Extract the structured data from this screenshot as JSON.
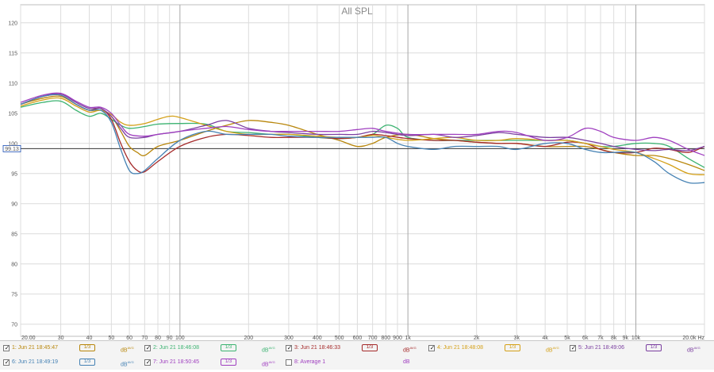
{
  "chart_data": {
    "type": "line",
    "title": "All SPL",
    "xscale": "log",
    "xlim": [
      20,
      20000
    ],
    "ylim": [
      68,
      123
    ],
    "x_ticks": [
      20,
      30,
      40,
      50,
      60,
      70,
      80,
      90,
      100,
      200,
      300,
      400,
      500,
      600,
      700,
      800,
      900,
      1000,
      2000,
      3000,
      4000,
      5000,
      6000,
      7000,
      8000,
      9000,
      10000,
      20000
    ],
    "x_tick_labels": [
      "20.00",
      "30",
      "40",
      "50",
      "60",
      "70",
      "80",
      "90",
      "100",
      "200",
      "300",
      "400",
      "500",
      "600",
      "700",
      "800",
      "900",
      "1k",
      "2k",
      "3k",
      "4k",
      "5k",
      "6k",
      "7k",
      "8k",
      "9k",
      "10k",
      "20.0k Hz"
    ],
    "y_ticks": [
      70,
      75,
      80,
      85,
      90,
      95,
      100,
      105,
      110,
      115,
      120
    ],
    "y_tick_labels": [
      "70",
      "75",
      "80",
      "85",
      "90",
      "95",
      "100",
      "105",
      "110",
      "115",
      "120"
    ],
    "reference_line": {
      "value": 99.13,
      "label": "99.13"
    },
    "grid": true,
    "series": [
      {
        "name": "1: Jun 21 18:45:47",
        "color": "#b8860b",
        "points": [
          [
            20,
            106.5
          ],
          [
            25,
            107.5
          ],
          [
            30,
            107.8
          ],
          [
            35,
            106.5
          ],
          [
            40,
            105.5
          ],
          [
            45,
            105.5
          ],
          [
            50,
            104.5
          ],
          [
            55,
            102
          ],
          [
            60,
            99.5
          ],
          [
            65,
            98.5
          ],
          [
            70,
            98
          ],
          [
            80,
            99.5
          ],
          [
            100,
            100.5
          ],
          [
            130,
            102
          ],
          [
            160,
            103
          ],
          [
            200,
            103.8
          ],
          [
            250,
            103.5
          ],
          [
            300,
            103
          ],
          [
            400,
            101.5
          ],
          [
            500,
            100.5
          ],
          [
            600,
            99.5
          ],
          [
            700,
            100
          ],
          [
            800,
            101
          ],
          [
            1000,
            101.5
          ],
          [
            1300,
            100.8
          ],
          [
            1600,
            100.5
          ],
          [
            2000,
            100.2
          ],
          [
            2500,
            100
          ],
          [
            3000,
            100
          ],
          [
            4000,
            99.5
          ],
          [
            5000,
            99.5
          ],
          [
            6000,
            99.5
          ],
          [
            7000,
            99
          ],
          [
            8000,
            98.5
          ],
          [
            10000,
            98
          ],
          [
            12000,
            98
          ],
          [
            14000,
            97.5
          ],
          [
            17000,
            96.5
          ],
          [
            20000,
            95.5
          ]
        ]
      },
      {
        "name": "2: Jun 21 18:46:08",
        "color": "#3cb371",
        "points": [
          [
            20,
            106
          ],
          [
            25,
            106.8
          ],
          [
            30,
            107
          ],
          [
            35,
            105.5
          ],
          [
            40,
            104.5
          ],
          [
            45,
            105
          ],
          [
            50,
            104
          ],
          [
            55,
            103
          ],
          [
            60,
            102.5
          ],
          [
            70,
            102.8
          ],
          [
            80,
            103.2
          ],
          [
            100,
            103.3
          ],
          [
            130,
            103.2
          ],
          [
            160,
            102
          ],
          [
            200,
            101.8
          ],
          [
            250,
            101.5
          ],
          [
            300,
            101.5
          ],
          [
            400,
            101
          ],
          [
            500,
            100.8
          ],
          [
            600,
            101
          ],
          [
            700,
            101.5
          ],
          [
            800,
            103
          ],
          [
            900,
            102.5
          ],
          [
            1000,
            101
          ],
          [
            1300,
            100.5
          ],
          [
            1600,
            100.5
          ],
          [
            2000,
            100.5
          ],
          [
            2500,
            100.5
          ],
          [
            3000,
            100.5
          ],
          [
            4000,
            100.5
          ],
          [
            5000,
            100.5
          ],
          [
            6000,
            100
          ],
          [
            7000,
            99.5
          ],
          [
            8000,
            99.5
          ],
          [
            10000,
            100
          ],
          [
            12000,
            100
          ],
          [
            14000,
            99.5
          ],
          [
            17000,
            97.5
          ],
          [
            20000,
            96
          ]
        ]
      },
      {
        "name": "3: Jun 21 18:46:33",
        "color": "#a52a2a",
        "points": [
          [
            20,
            106.5
          ],
          [
            25,
            107.8
          ],
          [
            30,
            108
          ],
          [
            35,
            106.5
          ],
          [
            40,
            105.5
          ],
          [
            45,
            105.8
          ],
          [
            50,
            104
          ],
          [
            55,
            100
          ],
          [
            60,
            97
          ],
          [
            65,
            95.5
          ],
          [
            70,
            95.3
          ],
          [
            80,
            97
          ],
          [
            100,
            99.5
          ],
          [
            130,
            101
          ],
          [
            160,
            101.5
          ],
          [
            200,
            101.3
          ],
          [
            250,
            101
          ],
          [
            300,
            101
          ],
          [
            400,
            101
          ],
          [
            500,
            100.8
          ],
          [
            600,
            101
          ],
          [
            700,
            101.5
          ],
          [
            800,
            101.3
          ],
          [
            1000,
            100.8
          ],
          [
            1300,
            100.5
          ],
          [
            1600,
            100.5
          ],
          [
            2000,
            100.2
          ],
          [
            2500,
            100
          ],
          [
            3000,
            100
          ],
          [
            4000,
            99.5
          ],
          [
            5000,
            100.2
          ],
          [
            6000,
            100
          ],
          [
            7000,
            99
          ],
          [
            8000,
            98.5
          ],
          [
            10000,
            98.5
          ],
          [
            12000,
            99.2
          ],
          [
            14000,
            99
          ],
          [
            17000,
            98.5
          ],
          [
            20000,
            99.5
          ]
        ]
      },
      {
        "name": "4: Jun 21 18:48:08",
        "color": "#d4a017",
        "points": [
          [
            20,
            106.2
          ],
          [
            25,
            107.2
          ],
          [
            30,
            107.5
          ],
          [
            35,
            106.2
          ],
          [
            40,
            105.2
          ],
          [
            45,
            105.5
          ],
          [
            50,
            104.8
          ],
          [
            55,
            103.5
          ],
          [
            60,
            103
          ],
          [
            70,
            103.3
          ],
          [
            80,
            104
          ],
          [
            90,
            104.5
          ],
          [
            100,
            104.3
          ],
          [
            130,
            103
          ],
          [
            160,
            102
          ],
          [
            200,
            101.5
          ],
          [
            250,
            101.5
          ],
          [
            300,
            101.5
          ],
          [
            400,
            101.2
          ],
          [
            500,
            101
          ],
          [
            600,
            101
          ],
          [
            700,
            101.3
          ],
          [
            800,
            101
          ],
          [
            1000,
            100.5
          ],
          [
            1300,
            100.8
          ],
          [
            1600,
            101
          ],
          [
            2000,
            100.5
          ],
          [
            2500,
            100.5
          ],
          [
            3000,
            100.8
          ],
          [
            4000,
            100.5
          ],
          [
            5000,
            100.5
          ],
          [
            6000,
            100
          ],
          [
            7000,
            99.5
          ],
          [
            8000,
            99
          ],
          [
            10000,
            98.5
          ],
          [
            12000,
            97.5
          ],
          [
            14000,
            96.5
          ],
          [
            17000,
            95
          ],
          [
            20000,
            94.8
          ]
        ]
      },
      {
        "name": "5: Jun 21 18:49:06",
        "color": "#7b3fa0",
        "points": [
          [
            20,
            106.5
          ],
          [
            25,
            107.8
          ],
          [
            30,
            108.2
          ],
          [
            35,
            106.8
          ],
          [
            40,
            105.8
          ],
          [
            45,
            105.8
          ],
          [
            50,
            104.5
          ],
          [
            55,
            102.5
          ],
          [
            60,
            101
          ],
          [
            70,
            101
          ],
          [
            80,
            101.5
          ],
          [
            100,
            102
          ],
          [
            130,
            103
          ],
          [
            160,
            103.8
          ],
          [
            200,
            102.5
          ],
          [
            250,
            102
          ],
          [
            300,
            101.8
          ],
          [
            400,
            101.5
          ],
          [
            500,
            101.5
          ],
          [
            600,
            101.5
          ],
          [
            700,
            102
          ],
          [
            800,
            101.8
          ],
          [
            1000,
            101.3
          ],
          [
            1300,
            101.5
          ],
          [
            1600,
            101
          ],
          [
            2000,
            101.3
          ],
          [
            2500,
            101.8
          ],
          [
            3000,
            101.5
          ],
          [
            4000,
            101
          ],
          [
            5000,
            101
          ],
          [
            6000,
            100.5
          ],
          [
            7000,
            100
          ],
          [
            8000,
            99.5
          ],
          [
            10000,
            99
          ],
          [
            12000,
            98.8
          ],
          [
            14000,
            99
          ],
          [
            17000,
            98.8
          ],
          [
            20000,
            99.5
          ]
        ]
      },
      {
        "name": "6: Jun 21 18:49:19",
        "color": "#4682b4",
        "points": [
          [
            20,
            106.5
          ],
          [
            25,
            107.8
          ],
          [
            30,
            108
          ],
          [
            35,
            106.5
          ],
          [
            40,
            105.5
          ],
          [
            45,
            105.5
          ],
          [
            50,
            103.5
          ],
          [
            55,
            99
          ],
          [
            60,
            95.5
          ],
          [
            65,
            95
          ],
          [
            70,
            95.5
          ],
          [
            80,
            97.5
          ],
          [
            100,
            100.5
          ],
          [
            130,
            102
          ],
          [
            160,
            101.5
          ],
          [
            200,
            101.5
          ],
          [
            250,
            101.5
          ],
          [
            300,
            101.2
          ],
          [
            400,
            101
          ],
          [
            500,
            101
          ],
          [
            600,
            101
          ],
          [
            700,
            101
          ],
          [
            800,
            101
          ],
          [
            900,
            100
          ],
          [
            1000,
            99.5
          ],
          [
            1300,
            99
          ],
          [
            1600,
            99.5
          ],
          [
            2000,
            99.5
          ],
          [
            2500,
            99.5
          ],
          [
            3000,
            99
          ],
          [
            4000,
            100
          ],
          [
            5000,
            100
          ],
          [
            6000,
            99
          ],
          [
            7000,
            98.5
          ],
          [
            8000,
            98.5
          ],
          [
            10000,
            98.5
          ],
          [
            12000,
            97
          ],
          [
            14000,
            95
          ],
          [
            17000,
            93.5
          ],
          [
            20000,
            93.5
          ]
        ]
      },
      {
        "name": "7: Jun 21 18:50:45",
        "color": "#a040c0",
        "points": [
          [
            20,
            106.8
          ],
          [
            25,
            108
          ],
          [
            30,
            108.3
          ],
          [
            35,
            107
          ],
          [
            40,
            106
          ],
          [
            45,
            106
          ],
          [
            50,
            105
          ],
          [
            55,
            103
          ],
          [
            60,
            101.5
          ],
          [
            70,
            101.2
          ],
          [
            80,
            101.5
          ],
          [
            100,
            102
          ],
          [
            130,
            102.5
          ],
          [
            160,
            102.8
          ],
          [
            200,
            102.3
          ],
          [
            250,
            102
          ],
          [
            300,
            102
          ],
          [
            400,
            102
          ],
          [
            500,
            102
          ],
          [
            600,
            102.3
          ],
          [
            700,
            102.5
          ],
          [
            800,
            102
          ],
          [
            1000,
            101.5
          ],
          [
            1300,
            101.5
          ],
          [
            1600,
            101.5
          ],
          [
            2000,
            101.5
          ],
          [
            2500,
            102
          ],
          [
            3000,
            101.8
          ],
          [
            4000,
            100.5
          ],
          [
            5000,
            101
          ],
          [
            6000,
            102.5
          ],
          [
            7000,
            102
          ],
          [
            8000,
            101
          ],
          [
            10000,
            100.5
          ],
          [
            12000,
            101
          ],
          [
            14000,
            100.5
          ],
          [
            17000,
            99
          ],
          [
            20000,
            98
          ]
        ]
      }
    ]
  },
  "legend": {
    "items": [
      {
        "label": "1: Jun 21 18:45:47",
        "checked": true,
        "color": "#b8860b",
        "smoothing": "1/3",
        "unit": "dB",
        "unit_sup": "AVG"
      },
      {
        "label": "2: Jun 21 18:46:08",
        "checked": true,
        "color": "#3cb371",
        "smoothing": "1/3",
        "unit": "dB",
        "unit_sup": "AVG"
      },
      {
        "label": "3: Jun 21 18:46:33",
        "checked": true,
        "color": "#a52a2a",
        "smoothing": "1/3",
        "unit": "dB",
        "unit_sup": "AVG"
      },
      {
        "label": "4: Jun 21 18:48:08",
        "checked": true,
        "color": "#d4a017",
        "smoothing": "1/3",
        "unit": "dB",
        "unit_sup": "AVG"
      },
      {
        "label": "5: Jun 21 18:49:06",
        "checked": true,
        "color": "#7b3fa0",
        "smoothing": "1/3",
        "unit": "dB",
        "unit_sup": "AVG"
      },
      {
        "label": "6: Jun 21 18:49:19",
        "checked": true,
        "color": "#4682b4",
        "smoothing": "1/3",
        "unit": "dB",
        "unit_sup": "AVG"
      },
      {
        "label": "7: Jun 21 18:50:45",
        "checked": true,
        "color": "#a040c0",
        "smoothing": "1/3",
        "unit": "dB",
        "unit_sup": "AVG"
      },
      {
        "label": "8: Average 1",
        "checked": false,
        "color": "#a040c0",
        "smoothing": "",
        "unit": "dB",
        "unit_sup": ""
      }
    ]
  }
}
